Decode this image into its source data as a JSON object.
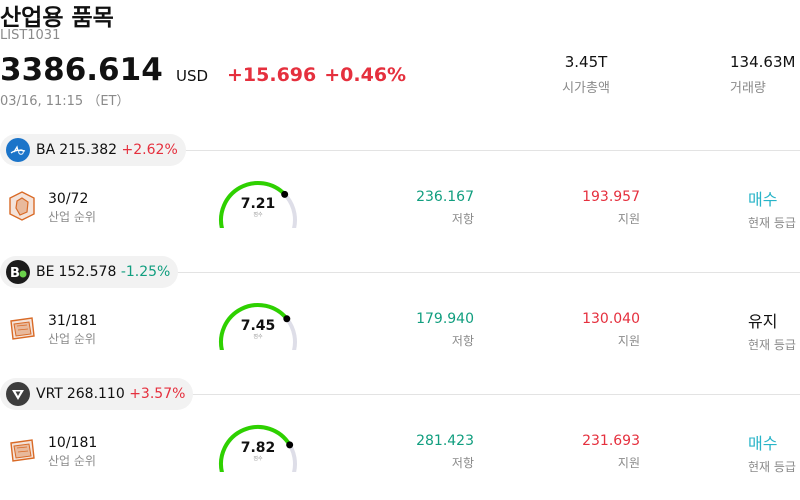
{
  "header": {
    "title": "산업용 품목",
    "list_id": "LIST1031",
    "price": "3386.614",
    "currency": "USD",
    "change": "+15.696",
    "change_pct": "+0.46%",
    "timestamp": "03/16, 11:15 （ET）",
    "market_cap_value": "3.45T",
    "market_cap_label": "시가총액",
    "volume_value": "134.63M",
    "volume_label": "거래량"
  },
  "colors": {
    "up": "#e5303e",
    "down": "#119e7f",
    "gauge_fill": "#2ed100",
    "gauge_track": "#dedee8",
    "buy": "#28b4c8"
  },
  "stocks": [
    {
      "symbol": "BA",
      "price": "215.382",
      "change_pct": "+2.62%",
      "direction": "up",
      "logo_icon": "boeing-logo-icon",
      "rank": "30/72",
      "rank_label": "산업 순위",
      "score": "7.21",
      "score_label": "점수",
      "score_fraction": 0.721,
      "resistance": "236.167",
      "resistance_label": "저항",
      "support": "193.957",
      "support_label": "지원",
      "signal": "매수",
      "signal_type": "buy",
      "signal_label": "현재 등급"
    },
    {
      "symbol": "BE",
      "price": "152.578",
      "change_pct": "-1.25%",
      "direction": "down",
      "logo_icon": "bloom-energy-logo-icon",
      "rank": "31/181",
      "rank_label": "산업 순위",
      "score": "7.45",
      "score_label": "점수",
      "score_fraction": 0.745,
      "resistance": "179.940",
      "resistance_label": "저항",
      "support": "130.040",
      "support_label": "지원",
      "signal": "유지",
      "signal_type": "hold",
      "signal_label": "현재 등급"
    },
    {
      "symbol": "VRT",
      "price": "268.110",
      "change_pct": "+3.57%",
      "direction": "up",
      "logo_icon": "vertiv-logo-icon",
      "rank": "10/181",
      "rank_label": "산업 순위",
      "score": "7.82",
      "score_label": "점수",
      "score_fraction": 0.782,
      "resistance": "281.423",
      "resistance_label": "저항",
      "support": "231.693",
      "support_label": "지원",
      "signal": "매수",
      "signal_type": "buy",
      "signal_label": "현재 등급"
    }
  ]
}
